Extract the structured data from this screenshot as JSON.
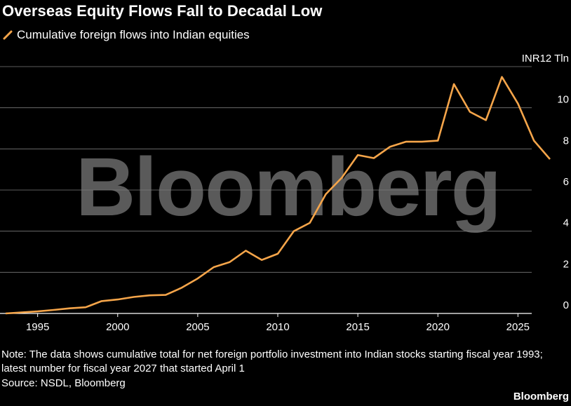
{
  "title": "Overseas Equity Flows Fall to Decadal Low",
  "legend": {
    "label": "Cumulative foreign flows into Indian equities",
    "color": "#f5a54a"
  },
  "watermark": "Bloomberg",
  "note": "Note: The data shows cumulative total for net foreign portfolio investment into Indian stocks starting fiscal year 1993; latest number for fiscal year 2027 that started April 1",
  "source": "Source: NSDL, Bloomberg",
  "brand": "Bloomberg",
  "chart_data": {
    "type": "line",
    "title": "Overseas Equity Flows Fall to Decadal Low",
    "ylabel": "INR12 Tln",
    "xlim": [
      1993,
      2027
    ],
    "ylim": [
      0,
      12
    ],
    "yticks": [
      {
        "value": 0,
        "label": "0"
      },
      {
        "value": 2,
        "label": "2"
      },
      {
        "value": 4,
        "label": "4"
      },
      {
        "value": 6,
        "label": "6"
      },
      {
        "value": 8,
        "label": "8"
      },
      {
        "value": 10,
        "label": "10"
      },
      {
        "value": 12,
        "label": "INR12 Tln"
      }
    ],
    "xticks": [
      {
        "value": 1995,
        "label": "1995"
      },
      {
        "value": 2000,
        "label": "2000"
      },
      {
        "value": 2005,
        "label": "2005"
      },
      {
        "value": 2010,
        "label": "2010"
      },
      {
        "value": 2015,
        "label": "2015"
      },
      {
        "value": 2020,
        "label": "2020"
      },
      {
        "value": 2025,
        "label": "2025"
      }
    ],
    "grid": true,
    "legend_position": "top-left",
    "series": [
      {
        "name": "Cumulative foreign flows into Indian equities",
        "color": "#f5a54a",
        "x": [
          1993,
          1994,
          1995,
          1996,
          1997,
          1998,
          1999,
          2000,
          2001,
          2002,
          2003,
          2004,
          2005,
          2006,
          2007,
          2008,
          2009,
          2010,
          2011,
          2012,
          2013,
          2014,
          2015,
          2016,
          2017,
          2018,
          2019,
          2020,
          2021,
          2022,
          2023,
          2024,
          2025,
          2026,
          2027
        ],
        "y": [
          0.0,
          0.05,
          0.1,
          0.17,
          0.25,
          0.3,
          0.6,
          0.68,
          0.8,
          0.88,
          0.9,
          1.25,
          1.7,
          2.25,
          2.5,
          3.05,
          2.6,
          2.9,
          4.0,
          4.4,
          5.8,
          6.6,
          7.7,
          7.55,
          8.1,
          8.35,
          8.35,
          8.4,
          11.15,
          9.8,
          9.4,
          11.5,
          10.2,
          8.4,
          7.5
        ]
      }
    ]
  }
}
